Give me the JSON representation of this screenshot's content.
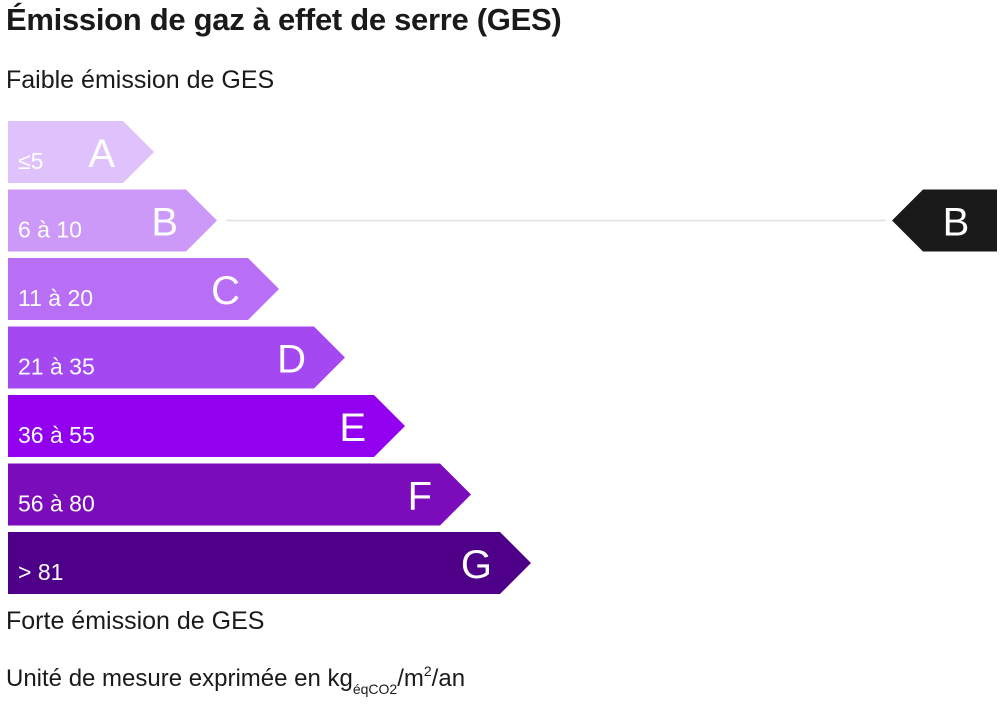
{
  "chart_data": {
    "type": "bar",
    "title": "Émission de gaz à effet de serre (GES)",
    "top_label": "Faible émission de GES",
    "bottom_label": "Forte émission de GES",
    "unit_note": {
      "prefix": "Unité de mesure exprimée en kg",
      "subscript": "éqCO2",
      "middle": "/m",
      "superscript": "2",
      "suffix": "/an"
    },
    "categories": [
      "A",
      "B",
      "C",
      "D",
      "E",
      "F",
      "G"
    ],
    "ranges": [
      "≤5",
      "6 à 10",
      "11 à 20",
      "21 à 35",
      "36 à 55",
      "56 à 80",
      "> 81"
    ],
    "colors": [
      "#dfc2fc",
      "#cc99f9",
      "#b86ff5",
      "#a449f2",
      "#9200ef",
      "#7a0cbb",
      "#4e0088"
    ],
    "range_text_colors": [
      "#f2e4ff",
      "#ffffff",
      "#ffffff",
      "#ffffff",
      "#ffffff",
      "#ffffff",
      "#ffffff"
    ],
    "selected_class": "B",
    "marker_color": "#1a1a1a"
  }
}
